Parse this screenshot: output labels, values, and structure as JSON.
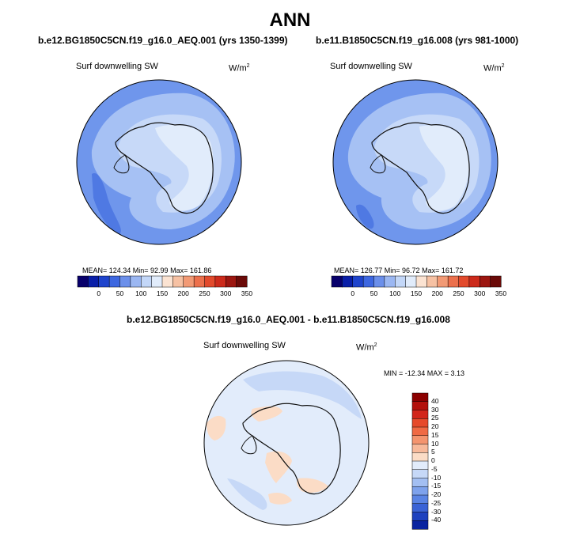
{
  "title": "ANN",
  "left_panel": {
    "title": "b.e12.BG1850C5CN.f19_g16.0_AEQ.001 (yrs 1350-1399)",
    "variable": "Surf downwelling SW",
    "units": "W/m",
    "units_sup": "2",
    "stats": "MEAN= 124.34  Min=  92.99  Max= 161.86"
  },
  "right_panel": {
    "title": "b.e11.B1850C5CN.f19_g16.008 (yrs 981-1000)",
    "variable": "Surf downwelling SW",
    "units": "W/m",
    "units_sup": "2",
    "stats": "MEAN= 126.77  Min=  96.72  Max= 161.72"
  },
  "diff_panel": {
    "title": "b.e12.BG1850C5CN.f19_g16.0_AEQ.001 - b.e11.B1850C5CN.f19_g16.008",
    "variable": "Surf downwelling SW",
    "units": "W/m",
    "units_sup": "2",
    "stats": "MIN = -12.34 MAX =   3.13"
  },
  "abs_colorbar": {
    "ticks": [
      "0",
      "50",
      "100",
      "150",
      "200",
      "250",
      "300",
      "350"
    ],
    "colors": [
      "#08006b",
      "#0a1fa8",
      "#1f44cc",
      "#3d67e0",
      "#6b8fea",
      "#9bb7f2",
      "#c3d7f8",
      "#e1ecfb",
      "#fbe3d2",
      "#f6c1a3",
      "#f29a75",
      "#ec704c",
      "#e24a2c",
      "#cc2a1b",
      "#9c1610",
      "#6a0a08"
    ]
  },
  "diff_colorbar": {
    "ticks": [
      "40",
      "30",
      "25",
      "20",
      "15",
      "10",
      "5",
      "0",
      "-5",
      "-10",
      "-15",
      "-20",
      "-25",
      "-30",
      "-40"
    ],
    "colors": [
      "#8b0000",
      "#b3100b",
      "#d2251a",
      "#e64a2b",
      "#f06a44",
      "#f4946e",
      "#f7b99a",
      "#fbdcc6",
      "#e2ecfb",
      "#c6d8f7",
      "#a3bff2",
      "#7ea2ec",
      "#5a84e4",
      "#3a63d6",
      "#1e42bf",
      "#0a24a0"
    ]
  },
  "palette": {
    "ocean_blue": "#6f96ec",
    "mid_blue": "#a6c1f4",
    "light_blue": "#c7d9f8",
    "pale_blue": "#e1ecfb",
    "deep_blue": "#4f79e3",
    "peach": "#fbe3d2",
    "coast": "#111111"
  }
}
